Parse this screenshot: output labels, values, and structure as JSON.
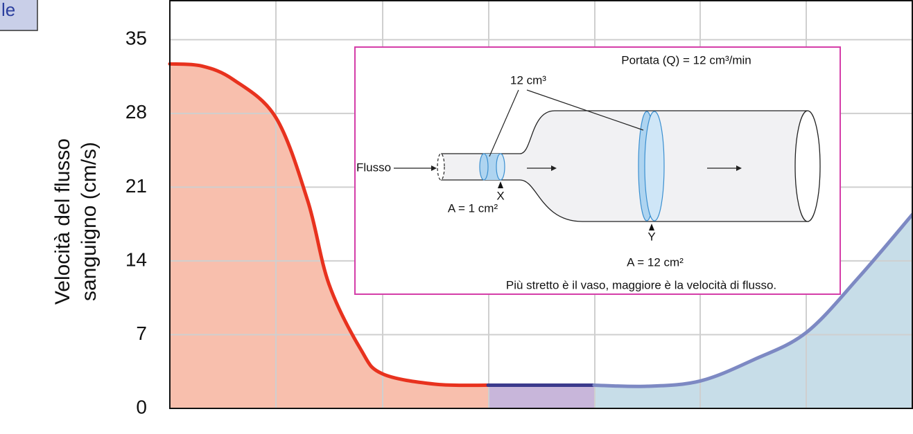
{
  "corner_label": "le",
  "chart_data": {
    "type": "area",
    "ylabel": [
      "Velocità del flusso",
      "sanguigno (cm/s)"
    ],
    "xlim": [
      0,
      7
    ],
    "ylim": [
      0,
      38.7
    ],
    "yticks": [
      0,
      7,
      14,
      21,
      28,
      35
    ],
    "grid": true,
    "series": [
      {
        "color": "#e8321e",
        "fill": "#f8bfad",
        "x": [
          0,
          0.3,
          0.6,
          1,
          1.3,
          1.5,
          1.8,
          2,
          2.5,
          3
        ],
        "values": [
          32.7,
          32.5,
          31.2,
          27.6,
          19.7,
          11.8,
          5.6,
          3.3,
          2.3,
          2.2
        ]
      },
      {
        "color": "#3b3a8c",
        "fill": "#c8b6da",
        "x": [
          3,
          4
        ],
        "values": [
          2.2,
          2.2
        ]
      },
      {
        "color": "#7d89c3",
        "fill": "#c7dde8",
        "x": [
          4,
          4.5,
          5,
          5.5,
          6,
          6.5,
          7
        ],
        "values": [
          2.2,
          2.1,
          2.6,
          4.6,
          7.2,
          12.5,
          18.4
        ]
      }
    ],
    "annotations": [
      "Portata (Q) = 12 cm³/min",
      "12 cm³",
      "Flusso",
      "X",
      "A = 1 cm²",
      "Y",
      "A = 12 cm²",
      "Più stretto è il vaso, maggiore è la velocità di flusso."
    ]
  }
}
